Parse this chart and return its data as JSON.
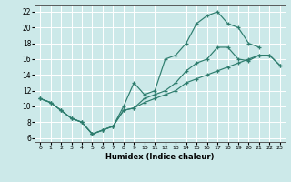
{
  "xlabel": "Humidex (Indice chaleur)",
  "bg_color": "#cce9e9",
  "grid_color": "#ffffff",
  "line_color": "#2e7d6e",
  "xlim": [
    -0.5,
    23.5
  ],
  "ylim": [
    5.5,
    22.8
  ],
  "xticks": [
    0,
    1,
    2,
    3,
    4,
    5,
    6,
    7,
    8,
    9,
    10,
    11,
    12,
    13,
    14,
    15,
    16,
    17,
    18,
    19,
    20,
    21,
    22,
    23
  ],
  "yticks": [
    6,
    8,
    10,
    12,
    14,
    16,
    18,
    20,
    22
  ],
  "curves": [
    {
      "x": [
        0,
        1,
        2,
        3,
        4,
        5,
        6,
        7,
        8,
        9,
        10,
        11,
        12,
        13,
        14,
        15,
        16,
        17,
        18,
        19,
        20,
        21
      ],
      "y": [
        11,
        10.5,
        9.5,
        8.5,
        8.0,
        6.5,
        7.0,
        7.5,
        10.0,
        13.0,
        11.5,
        12.0,
        16.0,
        16.5,
        18.0,
        20.5,
        21.5,
        22.0,
        20.5,
        20.0,
        18.0,
        17.5
      ]
    },
    {
      "x": [
        0,
        1,
        2,
        3,
        4,
        5,
        6,
        7,
        8,
        9,
        10,
        11,
        12,
        13,
        14,
        15,
        16,
        17,
        18,
        19,
        20,
        21,
        22,
        23
      ],
      "y": [
        11,
        10.5,
        9.5,
        8.5,
        8.0,
        6.5,
        7.0,
        7.5,
        9.5,
        9.8,
        11.0,
        11.5,
        12.0,
        13.0,
        14.5,
        15.5,
        16.0,
        17.5,
        17.5,
        16.0,
        15.8,
        16.5,
        16.5,
        15.2
      ]
    },
    {
      "x": [
        0,
        1,
        2,
        3,
        4,
        5,
        6,
        7,
        8,
        9,
        10,
        11,
        12,
        13,
        14,
        15,
        16,
        17,
        18,
        19,
        20,
        21,
        22,
        23
      ],
      "y": [
        11,
        10.5,
        9.5,
        8.5,
        8.0,
        6.5,
        7.0,
        7.5,
        9.5,
        9.8,
        10.5,
        11.0,
        11.5,
        12.0,
        13.0,
        13.5,
        14.0,
        14.5,
        15.0,
        15.5,
        16.0,
        16.5,
        16.5,
        15.2
      ]
    }
  ]
}
